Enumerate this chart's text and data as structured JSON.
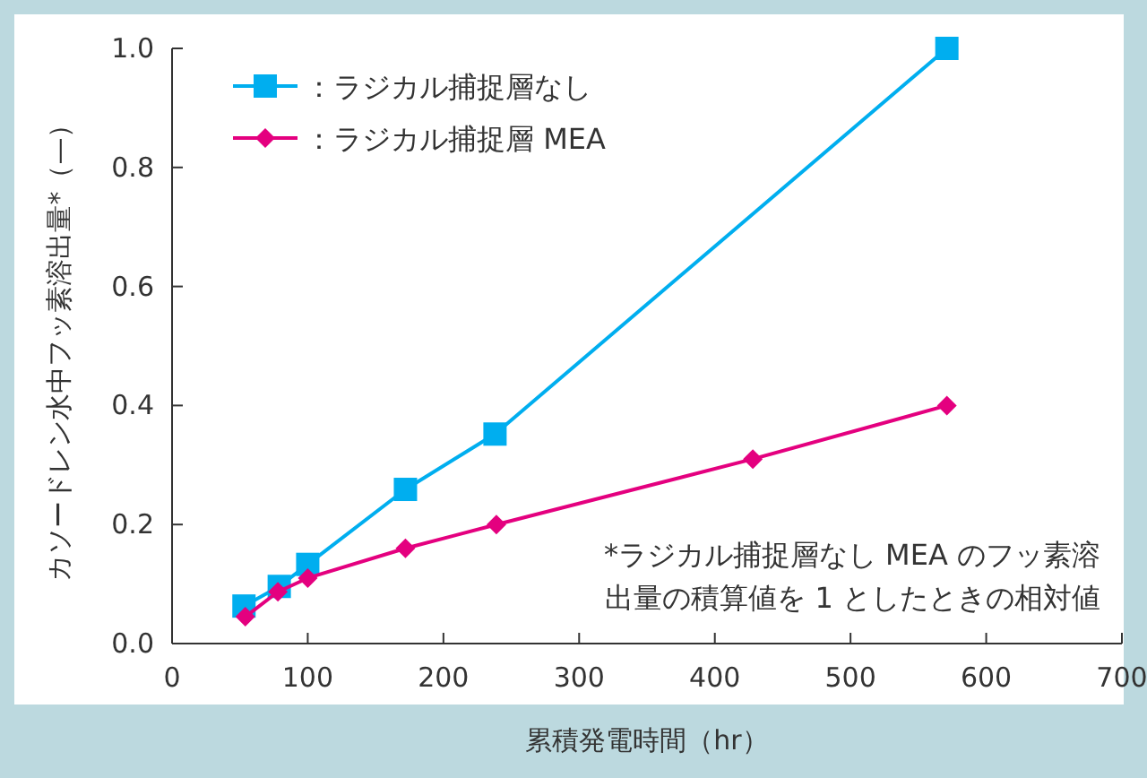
{
  "chart_data": {
    "type": "line",
    "xlabel": "累積発電時間（hr）",
    "ylabel": "カソードレン水中フッ素溶出量*（—）",
    "xlim": [
      0,
      700
    ],
    "xticks": [
      0,
      100,
      200,
      300,
      400,
      500,
      600,
      700
    ],
    "ylim": [
      0,
      1.0
    ],
    "yticks": [
      {
        "value": 0,
        "label": "0.0"
      },
      {
        "value": 0.2,
        "label": "0.2"
      },
      {
        "value": 0.4,
        "label": "0.4"
      },
      {
        "value": 0.6,
        "label": "0.6"
      },
      {
        "value": 0.8,
        "label": "0.8"
      },
      {
        "value": 1.0,
        "label": "1.0"
      }
    ],
    "grid": false,
    "legend": "top left",
    "line_style": "solid",
    "series": [
      {
        "name": "：ラジカル捕捉層なし",
        "color": "#00aeef",
        "marker": "square",
        "x": [
          53,
          79,
          100,
          172,
          238,
          571
        ],
        "values": [
          0.063,
          0.096,
          0.133,
          0.259,
          0.352,
          1.0
        ]
      },
      {
        "name": "：ラジカル捕捉層 MEA",
        "color": "#e4007f",
        "marker": "diamond",
        "x": [
          54,
          78,
          100,
          172,
          239,
          428,
          571
        ],
        "values": [
          0.045,
          0.087,
          0.11,
          0.16,
          0.2,
          0.31,
          0.4
        ]
      }
    ],
    "annotations": [
      "*ラジカル捕捉層なし MEA のフッ素溶",
      "出量の積算値を 1 としたときの相対値"
    ]
  }
}
